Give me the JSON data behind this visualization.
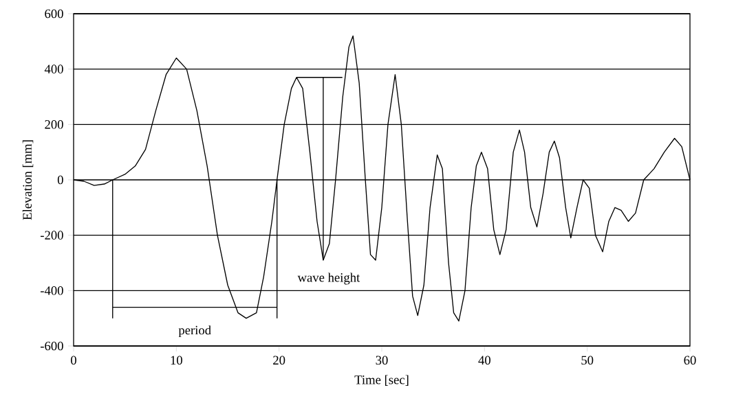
{
  "chart_data": {
    "type": "line",
    "xlabel": "Time [sec]",
    "ylabel": "Elevation [mm]",
    "xlim": [
      0,
      60
    ],
    "xticks": [
      0,
      10,
      20,
      30,
      40,
      50,
      60
    ],
    "ylim": [
      -600,
      600
    ],
    "yticks": [
      -600,
      -400,
      -200,
      0,
      200,
      400,
      600
    ],
    "grid": "y",
    "x": [
      0,
      1,
      2,
      3,
      3.8,
      5,
      6,
      7,
      8,
      9,
      10,
      11,
      12,
      13,
      14,
      15,
      16,
      16.8,
      17.8,
      18.5,
      19.3,
      19.8,
      20.5,
      21.2,
      21.7,
      22.3,
      23,
      23.7,
      24.3,
      24.9,
      25.5,
      26.2,
      26.8,
      27.2,
      27.8,
      28.4,
      28.9,
      29.4,
      30,
      30.6,
      31.3,
      31.9,
      32.5,
      33,
      33.5,
      34.1,
      34.7,
      35.4,
      35.9,
      36.5,
      37,
      37.5,
      38.1,
      38.7,
      39.2,
      39.7,
      40.3,
      40.9,
      41.5,
      42.1,
      42.8,
      43.4,
      43.9,
      44.5,
      45.1,
      45.7,
      46.3,
      46.8,
      47.3,
      47.9,
      48.4,
      49,
      49.6,
      50.2,
      50.8,
      51.5,
      52.1,
      52.7,
      53.3,
      54,
      54.7,
      55.5,
      56.5,
      57.5,
      58.5,
      59.2,
      60
    ],
    "series": [
      {
        "color": "#000000",
        "values": [
          0,
          -5,
          -20,
          -15,
          0,
          20,
          50,
          110,
          250,
          380,
          440,
          400,
          250,
          50,
          -200,
          -380,
          -480,
          -500,
          -480,
          -350,
          -150,
          0,
          200,
          330,
          370,
          330,
          100,
          -150,
          -290,
          -230,
          0,
          300,
          480,
          520,
          350,
          0,
          -270,
          -290,
          -100,
          200,
          380,
          200,
          -150,
          -420,
          -490,
          -380,
          -100,
          90,
          40,
          -300,
          -480,
          -510,
          -400,
          -100,
          50,
          100,
          40,
          -180,
          -270,
          -180,
          100,
          180,
          100,
          -100,
          -170,
          -50,
          100,
          140,
          80,
          -100,
          -210,
          -100,
          0,
          -30,
          -200,
          -260,
          -150,
          -100,
          -110,
          -150,
          -120,
          0,
          40,
          100,
          150,
          120,
          0
        ]
      }
    ],
    "annotations": [
      "period",
      "wave height"
    ]
  }
}
